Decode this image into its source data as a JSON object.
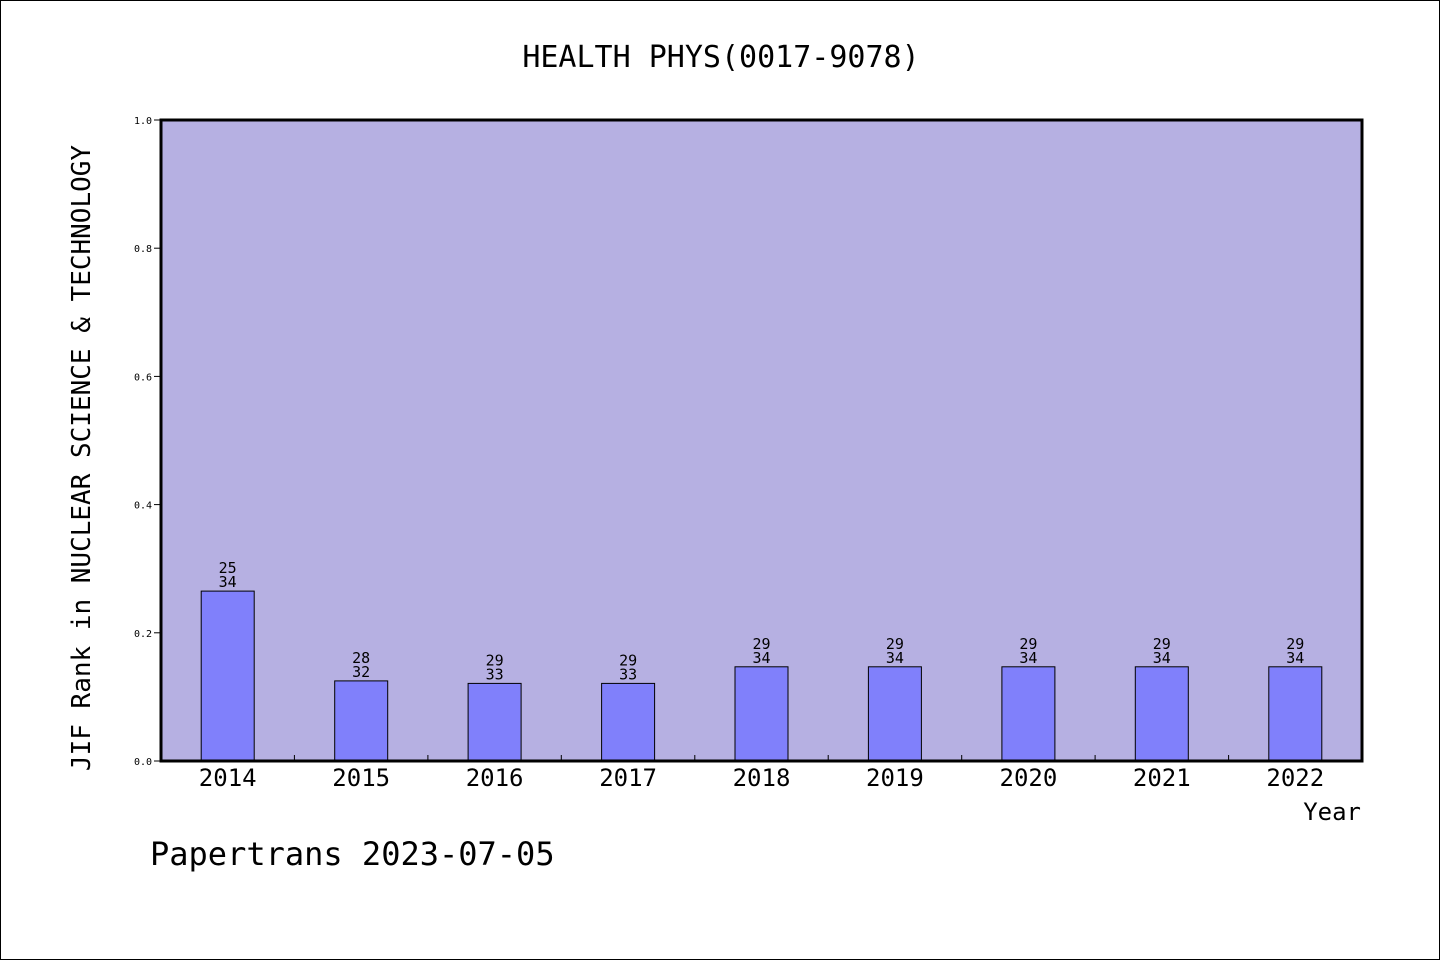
{
  "chart_data": {
    "type": "bar",
    "title": "HEALTH PHYS(0017-9078)",
    "xlabel": "Year",
    "ylabel": "JIF Rank in NUCLEAR SCIENCE & TECHNOLOGY",
    "categories": [
      "2014",
      "2015",
      "2016",
      "2017",
      "2018",
      "2019",
      "2020",
      "2021",
      "2022"
    ],
    "values": [
      0.265,
      0.125,
      0.121,
      0.121,
      0.147,
      0.147,
      0.147,
      0.147,
      0.147
    ],
    "rank_labels": [
      [
        "25",
        "34"
      ],
      [
        "28",
        "32"
      ],
      [
        "29",
        "33"
      ],
      [
        "29",
        "33"
      ],
      [
        "29",
        "34"
      ],
      [
        "29",
        "34"
      ],
      [
        "29",
        "34"
      ],
      [
        "29",
        "34"
      ],
      [
        "29",
        "34"
      ]
    ],
    "ylim": [
      0,
      1.0
    ],
    "yticks": [
      "0.0",
      "0.2",
      "0.4",
      "0.6",
      "0.8",
      "1.0"
    ],
    "grid": false,
    "colors": {
      "plot_background": "#b6b0e2",
      "bar_fill": "#8080fb",
      "bar_stroke": "#000000",
      "axis": "#000000"
    }
  },
  "footer": {
    "text": "Papertrans 2023-07-05"
  }
}
